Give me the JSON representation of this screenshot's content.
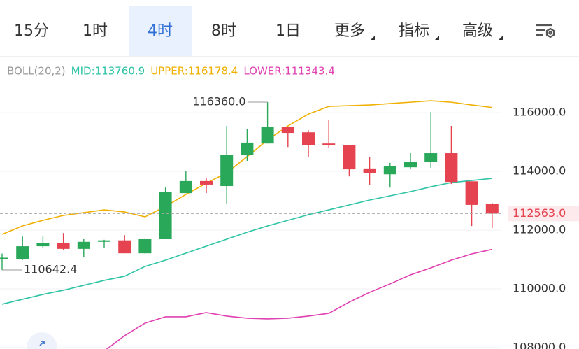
{
  "chart_data": {
    "type": "candlestick",
    "tabs": [
      {
        "label": "15分",
        "selected": false,
        "dropdown": false
      },
      {
        "label": "1时",
        "selected": false,
        "dropdown": false
      },
      {
        "label": "4时",
        "selected": true,
        "dropdown": false
      },
      {
        "label": "8时",
        "selected": false,
        "dropdown": false
      },
      {
        "label": "1日",
        "selected": false,
        "dropdown": false
      },
      {
        "label": "更多",
        "selected": false,
        "dropdown": true
      },
      {
        "label": "指标",
        "selected": false,
        "dropdown": true
      },
      {
        "label": "高级",
        "selected": false,
        "dropdown": true
      }
    ],
    "indicator": "BOLL(20,2)",
    "open": [
      111000,
      111020,
      111450,
      111550,
      111360,
      111600,
      111650,
      111210,
      111690,
      113260,
      113670,
      113500,
      114550,
      114950,
      115520,
      115330,
      114950,
      114900,
      114100,
      113900,
      114140,
      114310,
      114620,
      113660,
      112900
    ],
    "high": [
      111200,
      111780,
      111780,
      111900,
      111690,
      111670,
      111830,
      111700,
      113450,
      114020,
      113760,
      115550,
      115450,
      116360.0,
      115520,
      115400,
      115740,
      114900,
      114500,
      114290,
      114620,
      116020,
      115550,
      113660,
      112930
    ],
    "low": [
      110642.4,
      110980,
      111380,
      111330,
      111070,
      111380,
      111210,
      111200,
      111690,
      113260,
      113260,
      112880,
      114360,
      114950,
      114830,
      114480,
      114790,
      113830,
      113550,
      113450,
      114100,
      114120,
      113570,
      112140,
      112070
    ],
    "close": [
      111060,
      111450,
      111550,
      111360,
      111600,
      111650,
      111210,
      111690,
      113290,
      113670,
      113550,
      114550,
      114980,
      115520,
      115310,
      114900,
      114900,
      114070,
      113930,
      114170,
      114330,
      114620,
      113640,
      112860,
      112563.0
    ],
    "up_color": "#2aa85a",
    "down_color": "#e5434f",
    "series": [
      {
        "name": "MID",
        "label": "MID:113760.9",
        "color": "#2ec4a5",
        "values": [
          109476,
          109643,
          109810,
          109952,
          110119,
          110286,
          110429,
          110762,
          110976,
          111214,
          111452,
          111690,
          111929,
          112143,
          112333,
          112524,
          112690,
          112857,
          113024,
          113167,
          113310,
          113476,
          113619,
          113690,
          113760.9
        ]
      },
      {
        "name": "UPPER",
        "label": "UPPER:116178.4",
        "color": "#f0b000",
        "values": [
          111857,
          112143,
          112333,
          112500,
          112595,
          112690,
          112619,
          112452,
          112810,
          113214,
          113595,
          113952,
          114500,
          115071,
          115548,
          115952,
          116214,
          116238,
          116262,
          116310,
          116357,
          116405,
          116357,
          116262,
          116178.4
        ]
      },
      {
        "name": "LOWER",
        "label": "LOWER:111343.4",
        "color": "#e040b0",
        "values": [
          null,
          null,
          null,
          null,
          null,
          107880,
          108405,
          108833,
          109048,
          109048,
          109190,
          109071,
          109000,
          108976,
          109000,
          109071,
          109167,
          109548,
          109881,
          110167,
          110476,
          110714,
          110976,
          111190,
          111343.4
        ]
      }
    ],
    "ylim": [
      107950,
      116860
    ],
    "yticks": [
      {
        "value": 116000,
        "label": "116000.0"
      },
      {
        "value": 114000,
        "label": "114000.0"
      },
      {
        "value": 112000,
        "label": "112000.0"
      },
      {
        "value": 110000,
        "label": "110000.0"
      },
      {
        "value": 108000,
        "label": "108000.0"
      }
    ],
    "grid": true,
    "last_price": {
      "value": 112563.0,
      "label": "112563.0"
    },
    "annotations": [
      {
        "index": 13,
        "value": 116360.0,
        "label": "116360.0"
      },
      {
        "index": 0,
        "value": 110642.4,
        "label": "110642.4"
      }
    ]
  }
}
